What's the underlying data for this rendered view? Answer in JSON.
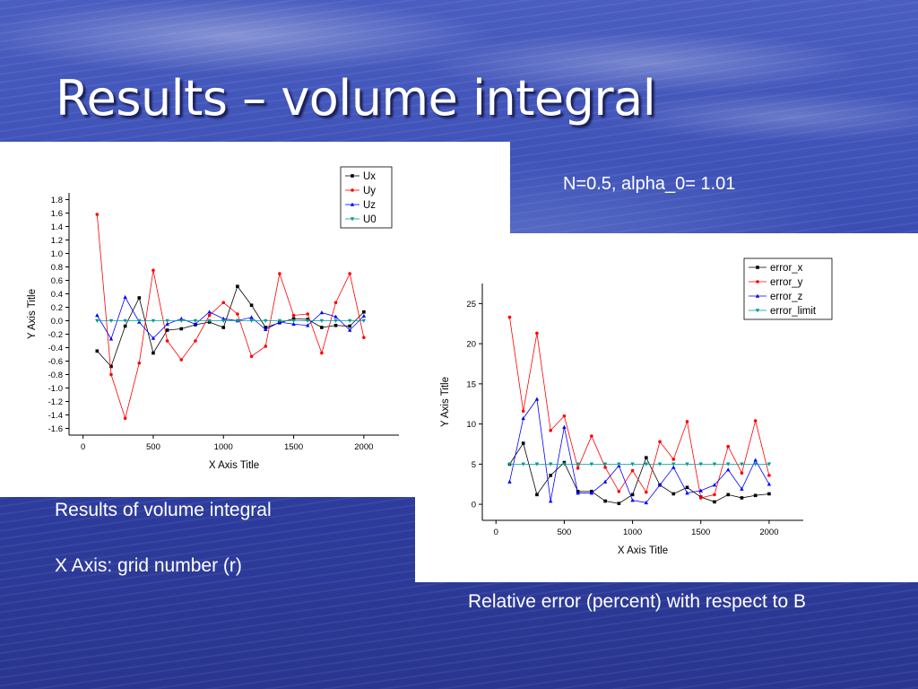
{
  "slide": {
    "title": "Results – volume integral",
    "params_caption": "N=0.5, alpha_0= 1.01",
    "left_caption_line1": "Results of volume integral",
    "left_caption_line2": "X Axis: grid number (r)",
    "right_caption": "Relative error (percent) with respect to B"
  },
  "chart_data": [
    {
      "type": "line",
      "xlabel": "X Axis Title",
      "ylabel": "Y Axis Title",
      "xlim": [
        -100,
        2250
      ],
      "ylim": [
        -1.7,
        1.9
      ],
      "xticks": [
        0,
        500,
        1000,
        1500,
        2000
      ],
      "yticks": [
        -1.6,
        -1.4,
        -1.2,
        -1.0,
        -0.8,
        -0.6,
        -0.4,
        -0.2,
        0.0,
        0.2,
        0.4,
        0.6,
        0.8,
        1.0,
        1.2,
        1.4,
        1.6,
        1.8
      ],
      "ytick_labels": [
        "-1.6",
        "-1.4",
        "-1.2",
        "-1.0",
        "-0.8",
        "-0.6",
        "-0.4",
        "-0.2",
        "0.0",
        "0.2",
        "0.4",
        "0.6",
        "0.8",
        "1.0",
        "1.2",
        "1.4",
        "1.6",
        "1.8"
      ],
      "legend_position": "top-right",
      "grid": false,
      "x": [
        100,
        200,
        300,
        400,
        500,
        600,
        700,
        800,
        900,
        1000,
        1100,
        1200,
        1300,
        1400,
        1500,
        1600,
        1700,
        1800,
        1900,
        2000
      ],
      "series": [
        {
          "name": "Ux",
          "color": "#000000",
          "marker": "square",
          "values": [
            -0.45,
            -0.68,
            -0.08,
            0.34,
            -0.48,
            -0.14,
            -0.12,
            -0.06,
            -0.02,
            -0.1,
            0.51,
            0.23,
            -0.1,
            -0.03,
            0.03,
            0.02,
            -0.1,
            -0.07,
            -0.08,
            0.13
          ]
        },
        {
          "name": "Uy",
          "color": "#ff0000",
          "marker": "circle",
          "values": [
            1.58,
            -0.8,
            -1.45,
            -0.63,
            0.75,
            -0.3,
            -0.58,
            -0.3,
            0.08,
            0.27,
            0.1,
            -0.53,
            -0.38,
            0.7,
            0.08,
            0.1,
            -0.48,
            0.27,
            0.7,
            -0.25
          ]
        },
        {
          "name": "Uz",
          "color": "#0000ff",
          "marker": "triangle",
          "values": [
            0.08,
            -0.27,
            0.35,
            -0.02,
            -0.26,
            -0.05,
            0.03,
            -0.05,
            0.13,
            0.03,
            0.0,
            0.05,
            -0.13,
            -0.02,
            -0.05,
            -0.07,
            0.12,
            0.06,
            -0.14,
            0.07
          ]
        },
        {
          "name": "U0",
          "color": "#009999",
          "marker": "triangle-down",
          "values": [
            0,
            0,
            0,
            0,
            0,
            0,
            0,
            0,
            0,
            0,
            0,
            0,
            0,
            0,
            0,
            0,
            0,
            0,
            0,
            0
          ]
        }
      ]
    },
    {
      "type": "line",
      "xlabel": "X Axis Title",
      "ylabel": "Y Axis Title",
      "xlim": [
        -100,
        2250
      ],
      "ylim": [
        -2,
        27.5
      ],
      "xticks": [
        0,
        500,
        1000,
        1500,
        2000
      ],
      "yticks": [
        0,
        5,
        10,
        15,
        20,
        25
      ],
      "ytick_labels": [
        "0",
        "5",
        "10",
        "15",
        "20",
        "25"
      ],
      "legend_position": "top-right",
      "grid": false,
      "x": [
        100,
        200,
        300,
        400,
        500,
        600,
        700,
        800,
        900,
        1000,
        1100,
        1200,
        1300,
        1400,
        1500,
        1600,
        1700,
        1800,
        1900,
        2000
      ],
      "series": [
        {
          "name": "error_x",
          "color": "#000000",
          "marker": "square",
          "values": [
            5.0,
            7.6,
            1.2,
            3.6,
            5.2,
            1.6,
            1.6,
            0.4,
            0.1,
            1.2,
            5.8,
            2.4,
            1.3,
            2.1,
            0.9,
            0.3,
            1.2,
            0.8,
            1.1,
            1.3
          ]
        },
        {
          "name": "error_y",
          "color": "#ff0000",
          "marker": "circle",
          "values": [
            23.3,
            11.6,
            21.3,
            9.2,
            11.0,
            4.5,
            8.5,
            4.6,
            1.6,
            4.2,
            1.5,
            7.8,
            5.6,
            10.3,
            0.8,
            1.2,
            7.2,
            3.9,
            10.4,
            3.6
          ]
        },
        {
          "name": "error_z",
          "color": "#0000ff",
          "marker": "triangle",
          "values": [
            2.8,
            10.7,
            13.1,
            0.4,
            9.6,
            1.4,
            1.4,
            2.8,
            4.8,
            0.5,
            0.2,
            2.4,
            4.6,
            1.4,
            1.7,
            2.4,
            4.3,
            1.9,
            5.5,
            2.5
          ]
        },
        {
          "name": "error_limit",
          "color": "#009999",
          "marker": "triangle-down",
          "values": [
            5,
            5,
            5,
            5,
            5,
            5,
            5,
            5,
            5,
            5,
            5,
            5,
            5,
            5,
            5,
            5,
            5,
            5,
            5,
            5
          ]
        }
      ]
    }
  ]
}
